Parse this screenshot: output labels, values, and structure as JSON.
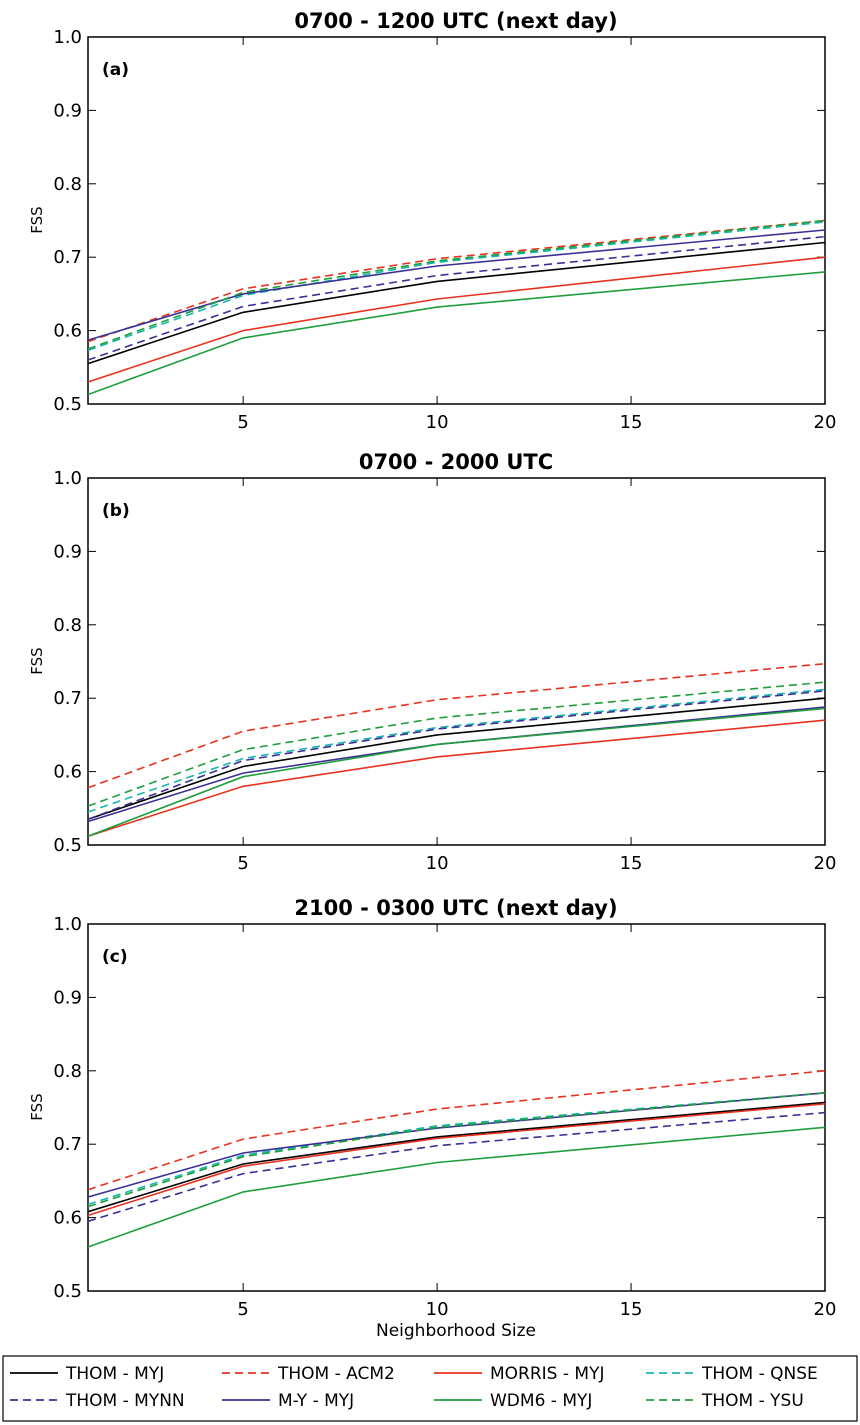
{
  "chart_data": [
    {
      "type": "line",
      "panel_label": "(a)",
      "title": "0700 - 1200 UTC (next day)",
      "xlabel": "",
      "ylabel": "FSS",
      "xlim": [
        1,
        20
      ],
      "ylim": [
        0.5,
        1.0
      ],
      "xticks": [
        5,
        10,
        15,
        20
      ],
      "yticks": [
        0.5,
        0.6,
        0.7,
        0.8,
        0.9,
        1.0
      ],
      "x": [
        1,
        5,
        10,
        20
      ],
      "series": [
        {
          "name": "THOM - MYJ",
          "values": [
            0.555,
            0.625,
            0.667,
            0.72
          ]
        },
        {
          "name": "THOM - ACM2",
          "values": [
            0.585,
            0.657,
            0.698,
            0.75
          ]
        },
        {
          "name": "MORRIS - MYJ",
          "values": [
            0.53,
            0.6,
            0.643,
            0.7
          ]
        },
        {
          "name": "THOM - QNSE",
          "values": [
            0.573,
            0.648,
            0.693,
            0.748
          ]
        },
        {
          "name": "THOM - MYNN",
          "values": [
            0.56,
            0.633,
            0.675,
            0.728
          ]
        },
        {
          "name": "M-Y - MYJ",
          "values": [
            0.587,
            0.65,
            0.688,
            0.737
          ]
        },
        {
          "name": "WDM6 - MYJ",
          "values": [
            0.513,
            0.59,
            0.632,
            0.68
          ]
        },
        {
          "name": "THOM - YSU",
          "values": [
            0.575,
            0.652,
            0.695,
            0.75
          ]
        }
      ]
    },
    {
      "type": "line",
      "panel_label": "(b)",
      "title": "0700 - 2000 UTC",
      "xlabel": "",
      "ylabel": "FSS",
      "xlim": [
        1,
        20
      ],
      "ylim": [
        0.5,
        1.0
      ],
      "xticks": [
        5,
        10,
        15,
        20
      ],
      "yticks": [
        0.5,
        0.6,
        0.7,
        0.8,
        0.9,
        1.0
      ],
      "x": [
        1,
        5,
        10,
        20
      ],
      "series": [
        {
          "name": "THOM - MYJ",
          "values": [
            0.535,
            0.607,
            0.65,
            0.7
          ]
        },
        {
          "name": "THOM - ACM2",
          "values": [
            0.578,
            0.655,
            0.698,
            0.747
          ]
        },
        {
          "name": "MORRIS - MYJ",
          "values": [
            0.512,
            0.58,
            0.62,
            0.67
          ]
        },
        {
          "name": "THOM - QNSE",
          "values": [
            0.545,
            0.618,
            0.66,
            0.712
          ]
        },
        {
          "name": "THOM - MYNN",
          "values": [
            0.535,
            0.615,
            0.658,
            0.71
          ]
        },
        {
          "name": "M-Y - MYJ",
          "values": [
            0.532,
            0.598,
            0.637,
            0.688
          ]
        },
        {
          "name": "WDM6 - MYJ",
          "values": [
            0.512,
            0.593,
            0.637,
            0.686
          ]
        },
        {
          "name": "THOM - YSU",
          "values": [
            0.553,
            0.63,
            0.673,
            0.722
          ]
        }
      ]
    },
    {
      "type": "line",
      "panel_label": "(c)",
      "title": "2100 - 0300 UTC (next day)",
      "xlabel": "Neighborhood Size",
      "ylabel": "FSS",
      "xlim": [
        1,
        20
      ],
      "ylim": [
        0.5,
        1.0
      ],
      "xticks": [
        5,
        10,
        15,
        20
      ],
      "yticks": [
        0.5,
        0.6,
        0.7,
        0.8,
        0.9,
        1.0
      ],
      "x": [
        1,
        5,
        10,
        20
      ],
      "series": [
        {
          "name": "THOM - MYJ",
          "values": [
            0.608,
            0.673,
            0.71,
            0.757
          ]
        },
        {
          "name": "THOM - ACM2",
          "values": [
            0.638,
            0.707,
            0.748,
            0.8
          ]
        },
        {
          "name": "MORRIS - MYJ",
          "values": [
            0.603,
            0.67,
            0.708,
            0.755
          ]
        },
        {
          "name": "THOM - QNSE",
          "values": [
            0.618,
            0.685,
            0.725,
            0.77
          ]
        },
        {
          "name": "THOM - MYNN",
          "values": [
            0.595,
            0.66,
            0.698,
            0.743
          ]
        },
        {
          "name": "M-Y - MYJ",
          "values": [
            0.628,
            0.688,
            0.722,
            0.77
          ]
        },
        {
          "name": "WDM6 - MYJ",
          "values": [
            0.56,
            0.635,
            0.675,
            0.723
          ]
        },
        {
          "name": "THOM - YSU",
          "values": [
            0.615,
            0.683,
            0.723,
            0.77
          ]
        }
      ]
    }
  ],
  "legend": {
    "entries": [
      {
        "name": "THOM - MYJ",
        "color": "#000000",
        "dash": "solid"
      },
      {
        "name": "THOM - ACM2",
        "color": "#e8321e",
        "dash": "dashed"
      },
      {
        "name": "MORRIS - MYJ",
        "color": "#e8321e",
        "dash": "solid"
      },
      {
        "name": "THOM - QNSE",
        "color": "#17b6b0",
        "dash": "dashed"
      },
      {
        "name": "THOM - MYNN",
        "color": "#3a3096",
        "dash": "dashed"
      },
      {
        "name": "M-Y - MYJ",
        "color": "#3a3096",
        "dash": "solid"
      },
      {
        "name": "WDM6 - MYJ",
        "color": "#1f9e3c",
        "dash": "solid"
      },
      {
        "name": "THOM - YSU",
        "color": "#1f9e3c",
        "dash": "dashed"
      }
    ]
  }
}
